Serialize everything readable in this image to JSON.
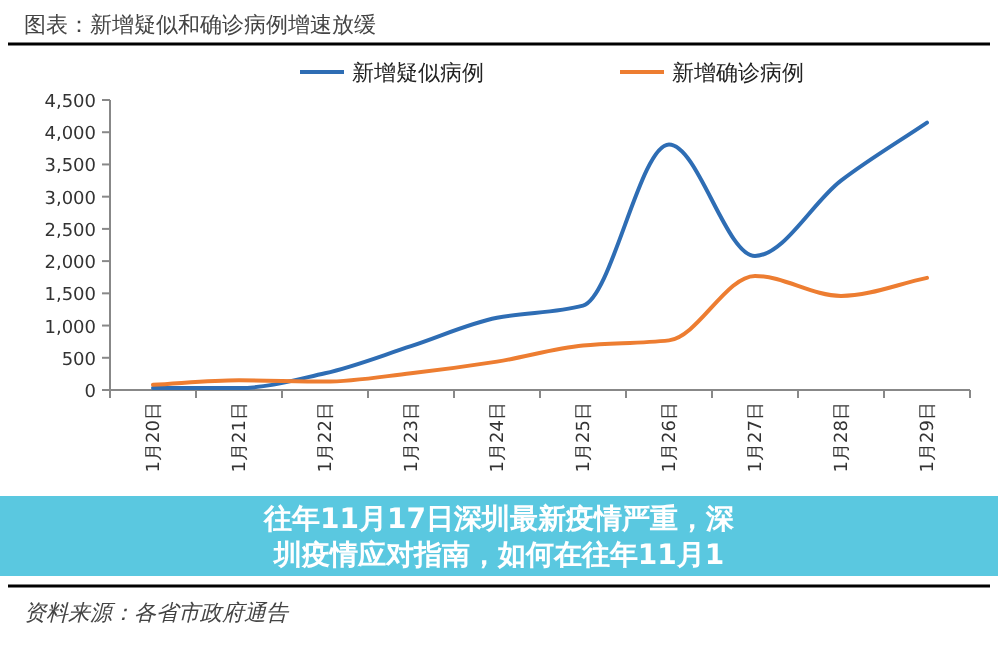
{
  "chart_data": {
    "type": "line",
    "title": "图表：新增疑似和确诊病例增速放缓",
    "categories": [
      "1月20日",
      "1月21日",
      "1月22日",
      "1月23日",
      "1月24日",
      "1月25日",
      "1月26日",
      "1月27日",
      "1月28日",
      "1月29日"
    ],
    "series": [
      {
        "name": "新增疑似病例",
        "color": "#2e6db4",
        "values": [
          30,
          30,
          260,
          680,
          1120,
          1310,
          3810,
          2080,
          3250,
          4150
        ]
      },
      {
        "name": "新增确诊病例",
        "color": "#ed7d31",
        "values": [
          80,
          150,
          130,
          260,
          440,
          690,
          770,
          1770,
          1460,
          1740
        ]
      }
    ],
    "ylim": [
      0,
      4500
    ],
    "yticks": [
      0,
      500,
      {
        "value": 1000,
        "label": "1,000"
      },
      {
        "value": 1500,
        "label": "1,500"
      },
      {
        "value": 2000,
        "label": "2,000"
      },
      {
        "value": 2500,
        "label": "2,500"
      },
      {
        "value": 3000,
        "label": "3,000"
      },
      {
        "value": 3500,
        "label": "3,500"
      },
      {
        "value": 4000,
        "label": "4,000"
      },
      {
        "value": 4500,
        "label": "4,500"
      }
    ],
    "grid": false,
    "legend": "top",
    "marker": "none",
    "line_style": "solid",
    "annotations": [
      "往年11月17日深圳最新疫情严重，深圳疫情应对指南，如何在往年11月1",
      "资料来源：各省市政府通告"
    ]
  }
}
